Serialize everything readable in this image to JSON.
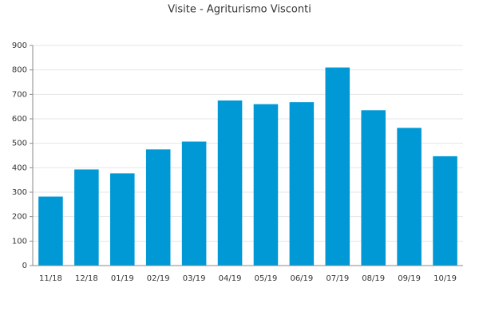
{
  "chart_data": {
    "type": "bar",
    "title": "Visite - Agriturismo Visconti",
    "categories": [
      "11/18",
      "12/18",
      "01/19",
      "02/19",
      "03/19",
      "04/19",
      "05/19",
      "06/19",
      "07/19",
      "08/19",
      "09/19",
      "10/19"
    ],
    "values": [
      282,
      393,
      377,
      475,
      507,
      675,
      660,
      668,
      810,
      635,
      563,
      447
    ],
    "color": "#0099d5",
    "ylim": [
      0,
      900
    ],
    "yticks": [
      0,
      100,
      200,
      300,
      400,
      500,
      600,
      700,
      800,
      900
    ],
    "grid": true
  }
}
